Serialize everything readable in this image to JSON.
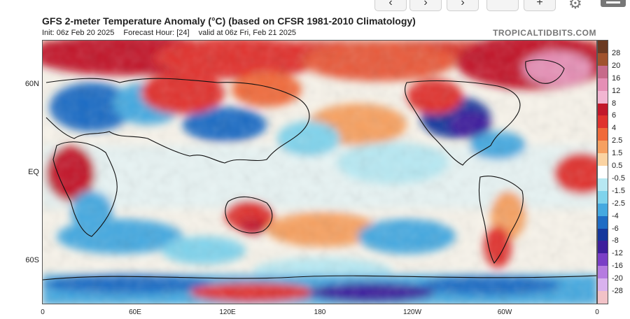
{
  "toolbar": {
    "nav_buttons": [
      {
        "name": "first-frame-button",
        "glyph": "‹"
      },
      {
        "name": "play-button",
        "glyph": "›"
      },
      {
        "name": "next-frame-button",
        "glyph": "›"
      },
      {
        "name": "button-4",
        "glyph": ""
      },
      {
        "name": "button-5",
        "glyph": "+"
      }
    ],
    "gear_icon": "gear-icon",
    "menu_icon": "menu-icon"
  },
  "header": {
    "title": "GFS 2-meter Temperature Anomaly (°C) (based on CFSR 1981-2010 Climatology)",
    "init": "Init: 06z Feb 20 2025",
    "forecast_hour": "Forecast Hour: [24]",
    "valid": "valid at 06z Fri, Feb 21 2025",
    "brand": "TROPICALTIDBITS.COM"
  },
  "axes": {
    "lat_labels": [
      "60N",
      "EQ",
      "60S"
    ],
    "lon_labels": [
      "0",
      "60E",
      "120E",
      "180",
      "120W",
      "60W",
      "0"
    ]
  },
  "colorbar": {
    "labels": [
      "28",
      "20",
      "16",
      "12",
      "8",
      "6",
      "4",
      "2.5",
      "1.5",
      "0.5",
      "-0.5",
      "-1.5",
      "-2.5",
      "-4",
      "-6",
      "-8",
      "-12",
      "-16",
      "-20",
      "-28"
    ],
    "colors": [
      "#6b3a22",
      "#a0522d",
      "#c76a8a",
      "#e58fb5",
      "#f2b6d2",
      "#c2182b",
      "#e0332e",
      "#f06a3a",
      "#f6a061",
      "#fbd3a2",
      "#ffffff",
      "#b7e8f2",
      "#7fd3ec",
      "#45a9e0",
      "#1f6cc4",
      "#15379c",
      "#3d1f9c",
      "#7a3fc6",
      "#b57be0",
      "#d9b2ee",
      "#f2c2c7"
    ]
  },
  "map": {
    "description_colors": {
      "warm": "#e0332e",
      "cool": "#1f6cc4",
      "neutral": "#f5f5f0"
    }
  }
}
